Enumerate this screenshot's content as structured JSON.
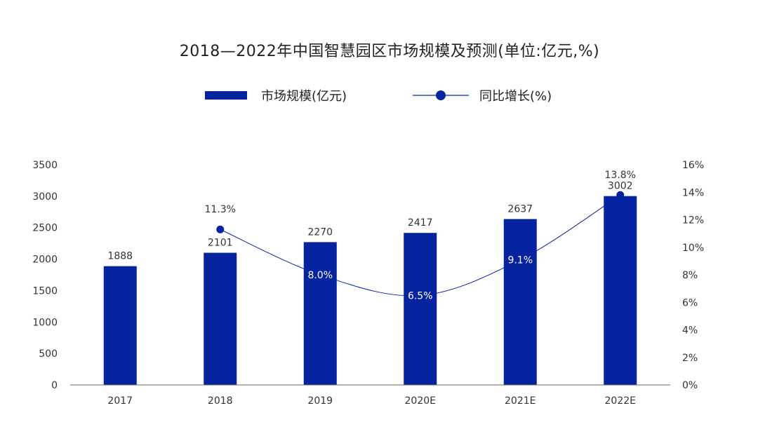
{
  "chart_data": {
    "type": "bar",
    "title": "2018—2022年中国智慧园区市场规模及预测(单位:亿元,%)",
    "categories": [
      "2017",
      "2018",
      "2019",
      "2020E",
      "2021E",
      "2022E"
    ],
    "series": [
      {
        "name": "市场规模(亿元)",
        "type": "bar",
        "axis": "left",
        "values": [
          1888,
          2101,
          2270,
          2417,
          2637,
          3002
        ],
        "labels": [
          "1888",
          "2101",
          "2270",
          "2417",
          "2637",
          "3002"
        ]
      },
      {
        "name": "同比增长(%)",
        "type": "line",
        "axis": "right",
        "values": [
          null,
          11.3,
          8.0,
          6.5,
          9.1,
          13.8
        ],
        "labels": [
          "",
          "11.3%",
          "8.0%",
          "6.5%",
          "9.1%",
          "13.8%"
        ]
      }
    ],
    "y_left": {
      "ylim": [
        0,
        3500
      ],
      "ticks": [
        "0",
        "500",
        "1000",
        "1500",
        "2000",
        "2500",
        "3000",
        "3500"
      ]
    },
    "y_right": {
      "ylim": [
        0,
        16
      ],
      "ticks": [
        "0%",
        "2%",
        "4%",
        "6%",
        "8%",
        "10%",
        "12%",
        "14%",
        "16%"
      ]
    },
    "legend_position": "top-center",
    "grid": false,
    "colors": {
      "bar": "#0623a0",
      "line": "#0623a0",
      "pct_inside": "#ffffff",
      "text": "#333333"
    }
  }
}
